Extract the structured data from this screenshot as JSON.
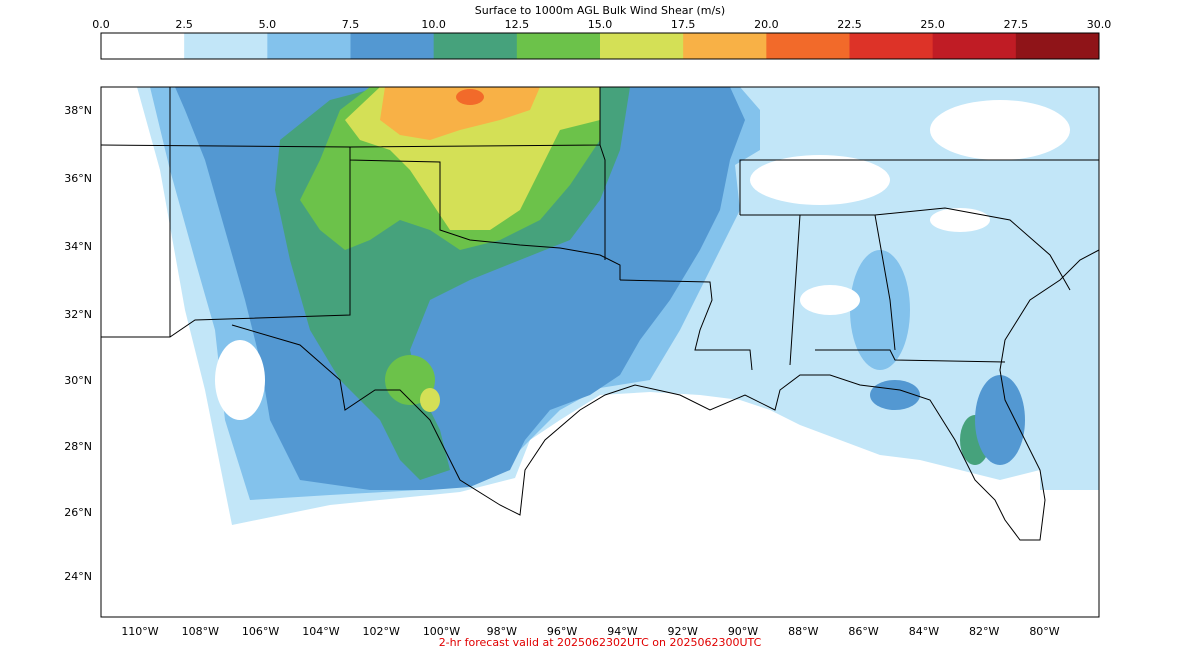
{
  "colorbar": {
    "title": "Surface to 1000m AGL Bulk Wind Shear (m/s)",
    "ticks": [
      "0.0",
      "2.5",
      "5.0",
      "7.5",
      "10.0",
      "12.5",
      "15.0",
      "17.5",
      "20.0",
      "22.5",
      "25.0",
      "27.5",
      "30.0"
    ],
    "colors": [
      "#ffffff",
      "#c2e6f8",
      "#83c2ec",
      "#5398d2",
      "#46a27c",
      "#6cc24a",
      "#d4e056",
      "#f8b146",
      "#f26a2a",
      "#dd3328",
      "#c01c25",
      "#8f1418"
    ]
  },
  "map": {
    "lat_labels": [
      "38°N",
      "36°N",
      "34°N",
      "32°N",
      "30°N",
      "28°N",
      "26°N",
      "24°N"
    ],
    "lon_labels": [
      "110°W",
      "108°W",
      "106°W",
      "104°W",
      "102°W",
      "100°W",
      "98°W",
      "96°W",
      "94°W",
      "92°W",
      "90°W",
      "88°W",
      "86°W",
      "84°W",
      "82°W",
      "80°W"
    ]
  },
  "footer": "2-hr forecast valid at 2025062302UTC on 2025062300UTC"
}
